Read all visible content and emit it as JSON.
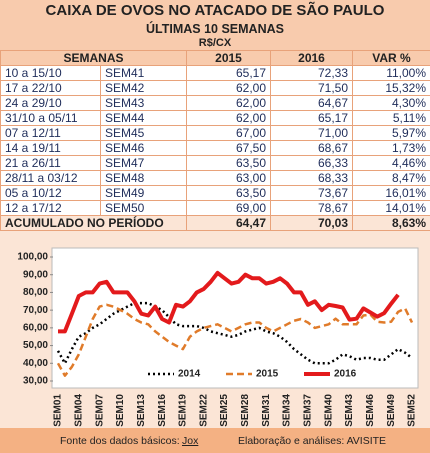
{
  "header": {
    "title": "CAIXA DE OVOS NO ATACADO DE SÃO PAULO",
    "subtitle": "ÚLTIMAS 10 SEMANAS",
    "unit": "R$/CX"
  },
  "table": {
    "columns": [
      "SEMANAS",
      "2015",
      "2016",
      "VAR %"
    ],
    "rows": [
      [
        "10 a 15/10",
        "SEM41",
        "65,17",
        "72,33",
        "11,00%"
      ],
      [
        "17 a 22/10",
        "SEM42",
        "62,00",
        "71,50",
        "15,32%"
      ],
      [
        "24 a 29/10",
        "SEM43",
        "62,00",
        "64,67",
        "4,30%"
      ],
      [
        "31/10 a 05/11",
        "SEM44",
        "62,00",
        "65,17",
        "5,11%"
      ],
      [
        "07 a 12/11",
        "SEM45",
        "67,00",
        "71,00",
        "5,97%"
      ],
      [
        "14 a 19/11",
        "SEM46",
        "67,50",
        "68,67",
        "1,73%"
      ],
      [
        "21 a 26/11",
        "SEM47",
        "63,50",
        "66,33",
        "4,46%"
      ],
      [
        "28/11 a 03/12",
        "SEM48",
        "63,00",
        "68,33",
        "8,47%"
      ],
      [
        "05 a 10/12",
        "SEM49",
        "63,50",
        "73,67",
        "16,01%"
      ],
      [
        "12 a 17/12",
        "SEM50",
        "69,00",
        "78,67",
        "14,01%"
      ]
    ],
    "total": [
      "ACUMULADO NO PERÍODO",
      "64,47",
      "70,03",
      "8,63%"
    ]
  },
  "chart_data": {
    "type": "line",
    "categories": [
      "SEM01",
      null,
      null,
      "SEM04",
      null,
      null,
      "SEM07",
      null,
      null,
      "SEM10",
      null,
      null,
      "SEM13",
      null,
      null,
      "SEM16",
      null,
      null,
      "SEM19",
      null,
      null,
      "SEM22",
      null,
      null,
      "SEM25",
      null,
      null,
      "SEM28",
      null,
      null,
      "SEM31",
      null,
      null,
      "SEM34",
      null,
      null,
      "SEM37",
      null,
      null,
      "SEM40",
      null,
      null,
      "SEM43",
      null,
      null,
      "SEM46",
      null,
      null,
      "SEM49",
      null,
      null,
      "SEM52"
    ],
    "series": [
      {
        "name": "2014",
        "color": "#000000",
        "dash": "dotted",
        "values": [
          47,
          40,
          48,
          55,
          57,
          60,
          62,
          65,
          68,
          70,
          72,
          74,
          74,
          74,
          72,
          70,
          66,
          62,
          61,
          61,
          61,
          60,
          58,
          57,
          56,
          55,
          56,
          58,
          59,
          60,
          58,
          57,
          55,
          52,
          48,
          45,
          42,
          40,
          40,
          40,
          42,
          45,
          44,
          42,
          43,
          43,
          42,
          42,
          45,
          48,
          46,
          43
        ]
      },
      {
        "name": "2015",
        "color": "#e07b2a",
        "dash": "dashed",
        "values": [
          40,
          33,
          38,
          45,
          55,
          65,
          72,
          73,
          72,
          70,
          68,
          65,
          63,
          62,
          58,
          55,
          52,
          50,
          48,
          55,
          58,
          60,
          61,
          62,
          60,
          58,
          60,
          62,
          63,
          63,
          60,
          58,
          60,
          62,
          64,
          65,
          63,
          60,
          61,
          62,
          65.17,
          62,
          62,
          62,
          67,
          67.5,
          63.5,
          63,
          63.5,
          69,
          71,
          63
        ]
      },
      {
        "name": "2016",
        "color": "#e31a1c",
        "dash": "solid",
        "values": [
          58,
          58,
          68,
          78,
          80,
          80,
          85,
          86,
          80,
          80,
          80,
          75,
          68,
          67,
          72,
          65,
          63,
          73,
          72,
          75,
          80,
          82,
          86,
          91,
          88,
          85,
          86,
          90,
          88,
          88,
          85,
          86,
          88,
          85,
          80,
          80,
          73,
          75,
          70,
          73,
          72.33,
          71.5,
          64.67,
          65.17,
          71,
          68.67,
          66.33,
          68.33,
          73.67,
          78.67,
          null,
          null
        ]
      }
    ],
    "ylim": [
      30,
      100
    ],
    "yticks": [
      {
        "value": 30,
        "label": "30,00"
      },
      {
        "value": 40,
        "label": "40,00"
      },
      {
        "value": 50,
        "label": "50,00"
      },
      {
        "value": 60,
        "label": "60,00"
      },
      {
        "value": 70,
        "label": "70,00"
      },
      {
        "value": 80,
        "label": "80,00"
      },
      {
        "value": 90,
        "label": "90,00"
      },
      {
        "value": 100,
        "label": "100,00"
      }
    ],
    "grid": false
  },
  "footer": {
    "source": "Fonte dos dados básicos:",
    "source_name": "Jox",
    "credit": "Elaboração e análises: AVISITE"
  }
}
